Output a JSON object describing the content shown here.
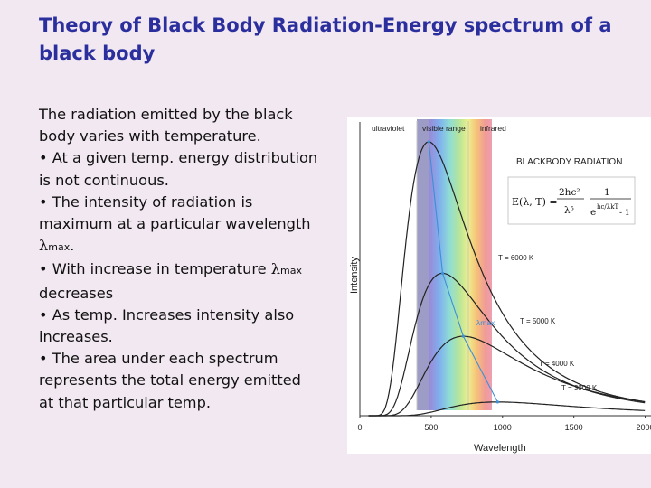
{
  "title": "Theory of Black Body Radiation-Energy spectrum of a black body",
  "body": {
    "l1": "The radiation emitted by the black",
    "l2": "body varies with temperature.",
    "l3": "• At a given temp. energy distribution",
    "l4": "is not continuous.",
    "l5": "• The intensity of radiation is",
    "l6": "maximum at a particular wavelength",
    "lam1_sym": "λ",
    "lam1_sub": "max",
    "lam1_tail": ".",
    "l8_pre": "• With increase in temperature ",
    "lam2_sym": "λ",
    "lam2_sub": "max",
    "l9": "decreases",
    "l10": "• As temp. Increases intensity also",
    "l11": "increases.",
    "l12": "• The area under each spectrum",
    "l13": "represents the total energy emitted",
    "l14": "at that particular temp."
  },
  "figure": {
    "ultraviolet_label": "ultraviolet",
    "visible_label": "visible range",
    "infrared_label": "infrared",
    "heading": "BLACKBODY RADIATION",
    "formula": {
      "lhs": "E(λ, T) =",
      "num1": "2hc²",
      "den1": "λ⁵",
      "num2": "1",
      "den2_base": "e",
      "den2_exp": "hc/λkT",
      "den2_tail": "- 1"
    },
    "y_axis_label": "Intensity",
    "x_axis_label": "Wavelength",
    "x_ticks": [
      "0",
      "500",
      "1000",
      "1500",
      "2000"
    ],
    "lambda_max_label": "λmax",
    "curve_labels": [
      "T = 6000 K",
      "T = 5000 K",
      "T = 4000 K",
      "T = 3000 K"
    ]
  },
  "chart_data": {
    "type": "line",
    "title": "BLACKBODY RADIATION",
    "xlabel": "Wavelength",
    "ylabel": "Intensity",
    "xlim": [
      0,
      2000
    ],
    "x_ticks": [
      0,
      500,
      1000,
      1500,
      2000
    ],
    "series": [
      {
        "name": "T = 6000 K",
        "temperature_K": 6000,
        "peak_wavelength": 483,
        "peak_relative_intensity": 1.0
      },
      {
        "name": "T = 5000 K",
        "temperature_K": 5000,
        "peak_wavelength": 580,
        "peak_relative_intensity": 0.52
      },
      {
        "name": "T = 4000 K",
        "temperature_K": 4000,
        "peak_wavelength": 725,
        "peak_relative_intensity": 0.29
      },
      {
        "name": "T = 3000 K",
        "temperature_K": 3000,
        "peak_wavelength": 966,
        "peak_relative_intensity": 0.05
      }
    ],
    "bands": [
      {
        "name": "ultraviolet",
        "range": [
          0,
          400
        ]
      },
      {
        "name": "visible range",
        "range": [
          400,
          750
        ]
      },
      {
        "name": "infrared",
        "range": [
          750,
          2000
        ]
      }
    ],
    "lambda_max_label": "λmax",
    "colors": {
      "curves": "#222222",
      "lambda_max_trace": "#3d8fd8"
    }
  }
}
